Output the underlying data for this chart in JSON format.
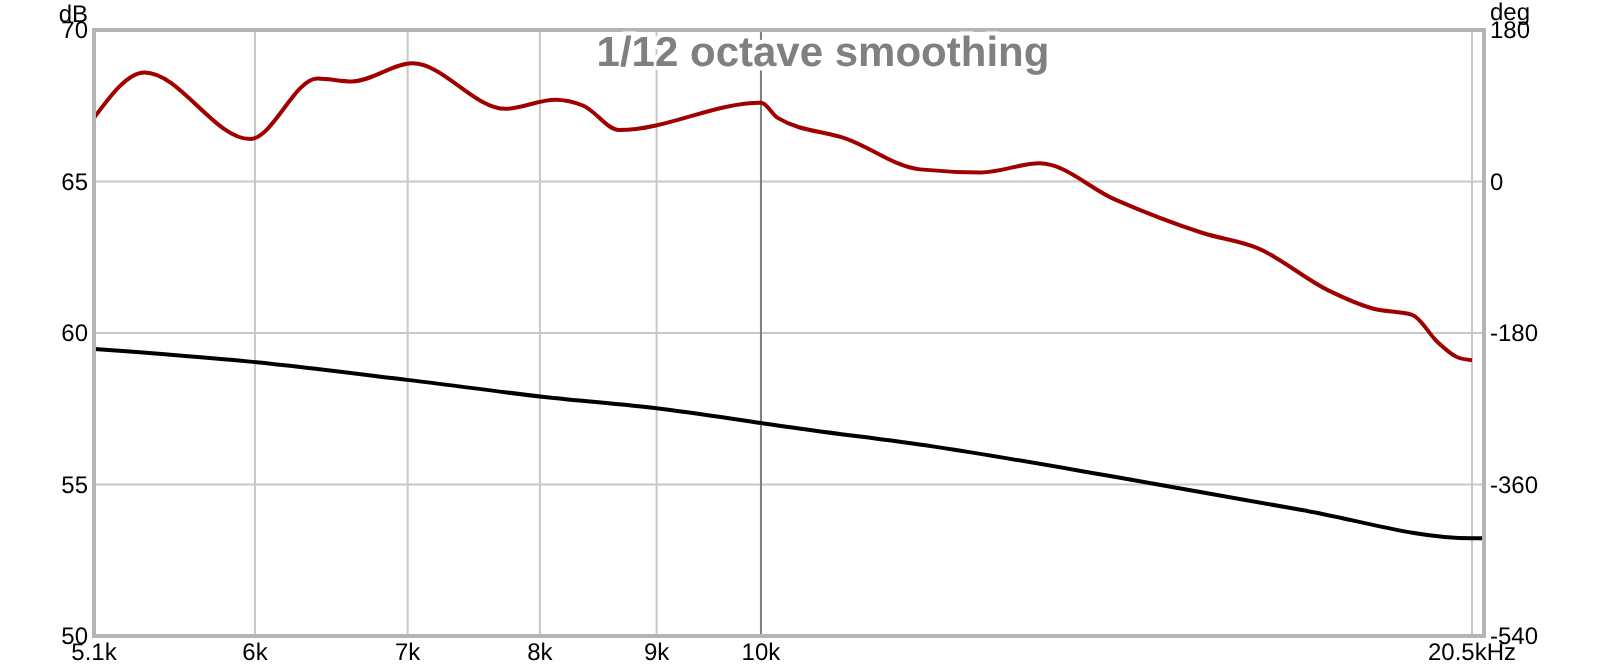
{
  "chart_data": {
    "type": "line",
    "title": "1/12 octave smoothing",
    "ylabel": "dB",
    "y2label": "deg",
    "log": "x",
    "grid": true,
    "marker": "none",
    "line_style": "solid",
    "xlim": [
      5.1,
      20.75
    ],
    "xticks": [
      {
        "value": 5.1,
        "label": "5.1k"
      },
      {
        "value": 6,
        "label": "6k"
      },
      {
        "value": 7,
        "label": "7k"
      },
      {
        "value": 8,
        "label": "8k"
      },
      {
        "value": 9,
        "label": "9k"
      },
      {
        "value": 10,
        "label": "10k"
      },
      {
        "value": 20.5,
        "label": "20.5kHz"
      }
    ],
    "ylim": [
      50,
      70
    ],
    "yticks": [
      50,
      55,
      60,
      65,
      70
    ],
    "y2lim": [
      -540,
      180
    ],
    "y2ticks": [
      -540,
      -360,
      -180,
      0,
      180
    ],
    "ref_lines": [
      {
        "axis": "x",
        "value": 10,
        "color": "#808080"
      }
    ],
    "series": [
      {
        "color": "#a00000",
        "x": [
          5.1,
          5.367,
          5.97,
          6.39,
          6.617,
          7.034,
          7.726,
          8.125,
          8.359,
          8.668,
          10,
          10.17,
          10.91,
          11.74,
          12.49,
          13.25,
          14.3,
          15.62,
          16.51,
          17.74,
          18.56,
          19.3,
          19.8,
          20.2,
          20.5
        ],
        "values": [
          67.1,
          68.6,
          66.4,
          68.4,
          68.3,
          68.9,
          67.4,
          67.7,
          67.5,
          66.7,
          67.6,
          67.1,
          66.4,
          65.4,
          65.3,
          65.6,
          64.4,
          63.3,
          62.8,
          61.4,
          60.8,
          60.6,
          59.7,
          59.2,
          59.1
        ]
      },
      {
        "color": "#000000",
        "axis": "y2",
        "x": [
          5.1,
          5.97,
          7.01,
          8.036,
          9.034,
          10,
          10.17,
          11.91,
          14.37,
          17.24,
          20.5,
          20.75
        ],
        "values": [
          -199,
          -214,
          -236,
          -256,
          -270,
          -287,
          -290,
          -315,
          -352,
          -390,
          -424,
          -424
        ]
      }
    ]
  }
}
